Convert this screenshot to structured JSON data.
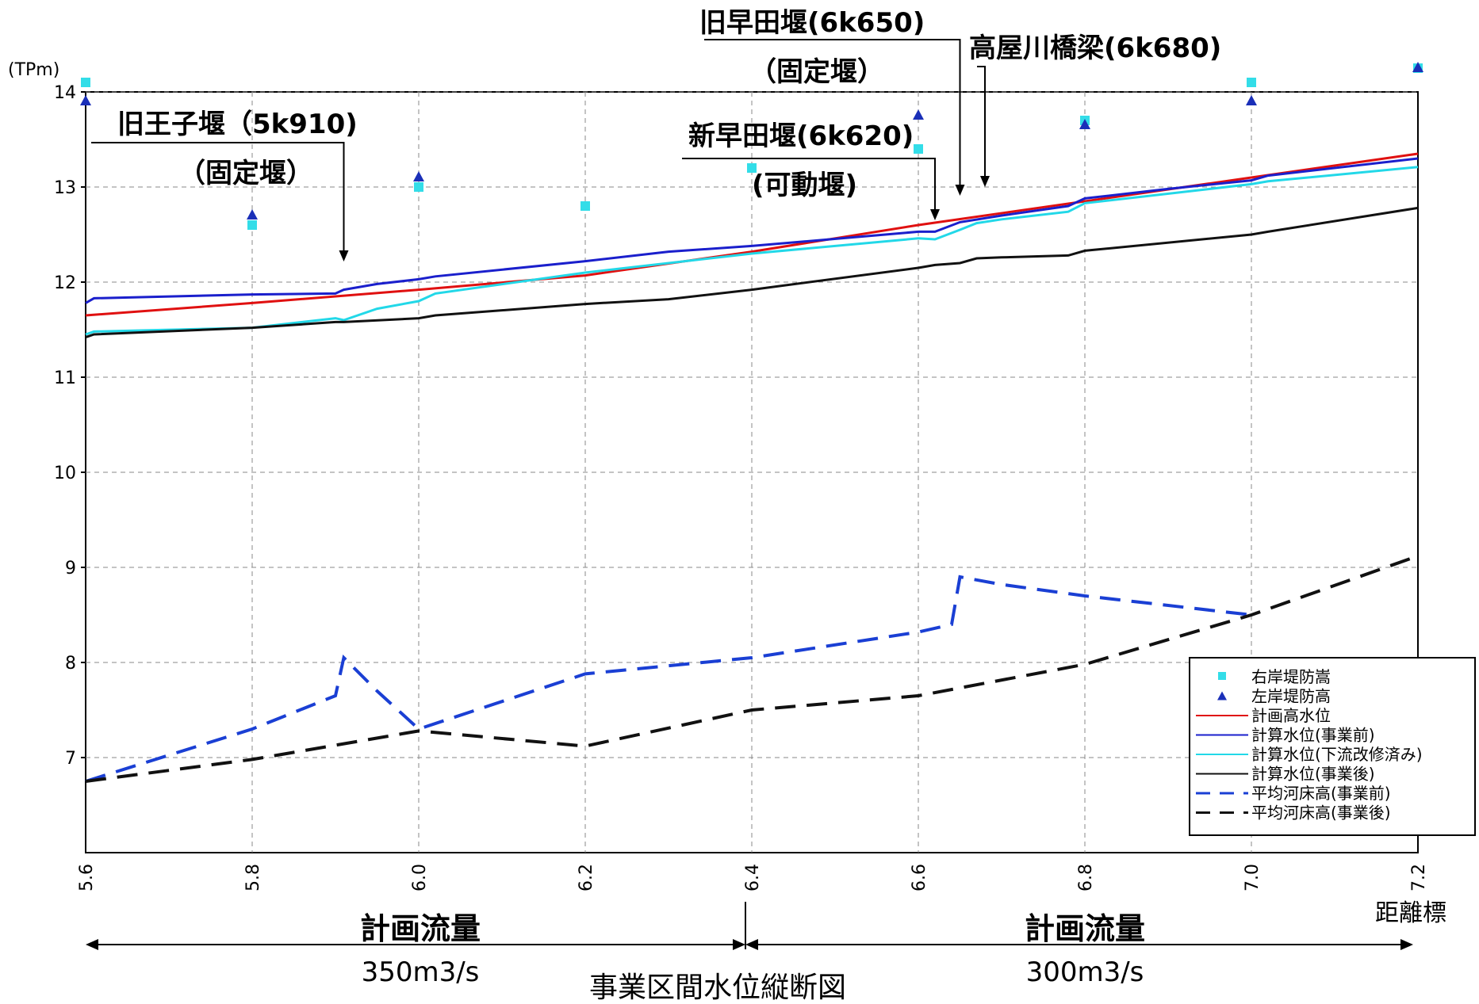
{
  "chart_data": {
    "type": "line",
    "title": "事業区間水位縦断図",
    "ylabel": "(TPm)",
    "xlabel": "距離標",
    "xlim": [
      5.6,
      7.2
    ],
    "ylim": [
      6,
      14
    ],
    "grid": true,
    "legend_position": "bottom-right",
    "x_ticks": [
      5.6,
      5.8,
      6.0,
      6.2,
      6.4,
      6.6,
      6.8,
      7.0,
      7.2
    ],
    "x_tick_labels": [
      "5.6",
      "5.8",
      "6.0",
      "6.2",
      "6.4",
      "6.6",
      "6.8",
      "7.0",
      "7.2"
    ],
    "y_ticks": [
      7,
      8,
      9,
      10,
      11,
      12,
      13,
      14
    ],
    "y_tick_labels": [
      "7",
      "8",
      "9",
      "10",
      "11",
      "12",
      "13",
      "14"
    ],
    "markers": [
      {
        "name": "右岸堤防嵩",
        "shape": "square",
        "color": "#33dde8",
        "points": [
          [
            5.6,
            14.1
          ],
          [
            5.8,
            12.6
          ],
          [
            6.0,
            13.0
          ],
          [
            6.2,
            12.8
          ],
          [
            6.4,
            13.2
          ],
          [
            6.6,
            13.4
          ],
          [
            6.8,
            13.7
          ],
          [
            7.0,
            14.1
          ],
          [
            7.2,
            14.25
          ]
        ]
      },
      {
        "name": "左岸堤防高",
        "shape": "triangle",
        "color": "#1a2fb8",
        "points": [
          [
            5.6,
            13.9
          ],
          [
            5.8,
            12.7
          ],
          [
            6.0,
            13.1
          ],
          [
            6.6,
            13.75
          ],
          [
            6.8,
            13.65
          ],
          [
            7.0,
            13.9
          ],
          [
            7.2,
            14.25
          ]
        ]
      }
    ],
    "series": [
      {
        "name": "計画高水位",
        "color": "#e01010",
        "dash": "solid",
        "x": [
          5.6,
          5.8,
          6.0,
          6.2,
          6.4,
          6.6,
          6.8,
          7.0,
          7.2
        ],
        "y": [
          11.65,
          11.78,
          11.92,
          12.07,
          12.32,
          12.6,
          12.85,
          13.1,
          13.35
        ]
      },
      {
        "name": "計算水位(事業前)",
        "color": "#1a1fcc",
        "dash": "solid",
        "x": [
          5.6,
          5.61,
          5.8,
          5.9,
          5.91,
          5.95,
          6.0,
          6.02,
          6.2,
          6.3,
          6.4,
          6.6,
          6.62,
          6.65,
          6.7,
          6.78,
          6.8,
          6.9,
          7.0,
          7.02,
          7.2
        ],
        "y": [
          11.78,
          11.83,
          11.87,
          11.88,
          11.92,
          11.98,
          12.03,
          12.06,
          12.22,
          12.32,
          12.38,
          12.53,
          12.53,
          12.63,
          12.7,
          12.8,
          12.88,
          12.98,
          13.07,
          13.12,
          13.3
        ]
      },
      {
        "name": "計算水位(下流改修済み)",
        "color": "#22d8e8",
        "dash": "solid",
        "x": [
          5.6,
          5.61,
          5.8,
          5.9,
          5.91,
          5.95,
          6.0,
          6.02,
          6.2,
          6.4,
          6.6,
          6.62,
          6.65,
          6.67,
          6.7,
          6.78,
          6.8,
          7.0,
          7.02,
          7.2
        ],
        "y": [
          11.45,
          11.48,
          11.52,
          11.62,
          11.6,
          11.72,
          11.8,
          11.88,
          12.1,
          12.3,
          12.46,
          12.45,
          12.55,
          12.62,
          12.66,
          12.74,
          12.83,
          13.03,
          13.06,
          13.21
        ]
      },
      {
        "name": "計算水位(事業後)",
        "color": "#111111",
        "dash": "solid",
        "x": [
          5.6,
          5.61,
          5.8,
          5.9,
          5.91,
          6.0,
          6.02,
          6.2,
          6.3,
          6.4,
          6.6,
          6.62,
          6.65,
          6.67,
          6.7,
          6.78,
          6.8,
          7.0,
          7.02,
          7.2
        ],
        "y": [
          11.42,
          11.45,
          11.52,
          11.58,
          11.58,
          11.62,
          11.65,
          11.77,
          11.82,
          11.92,
          12.15,
          12.18,
          12.2,
          12.25,
          12.26,
          12.28,
          12.33,
          12.5,
          12.53,
          12.78
        ]
      },
      {
        "name": "平均河床高(事業前)",
        "color": "#1a3fd4",
        "dash": "dashed",
        "x": [
          5.6,
          5.8,
          5.9,
          5.91,
          5.95,
          6.0,
          6.2,
          6.4,
          6.6,
          6.64,
          6.65,
          6.7,
          6.8,
          7.0
        ],
        "y": [
          6.75,
          7.3,
          7.65,
          8.05,
          7.7,
          7.3,
          7.88,
          8.05,
          8.32,
          8.4,
          8.9,
          8.82,
          8.7,
          8.5
        ]
      },
      {
        "name": "平均河床高(事業後)",
        "color": "#111111",
        "dash": "dashed",
        "x": [
          5.6,
          5.8,
          6.0,
          6.2,
          6.4,
          6.6,
          6.8,
          7.0,
          7.2
        ],
        "y": [
          6.75,
          6.98,
          7.28,
          7.12,
          7.5,
          7.65,
          7.98,
          8.5,
          9.12
        ]
      }
    ],
    "annotations": [
      {
        "id": "ouji",
        "line1": "旧王子堰（5k910)",
        "line2": "（固定堰）",
        "x": 5.91
      },
      {
        "id": "shinwaseda",
        "line1": "新早田堰(6k620)",
        "line2": "(可動堰)",
        "x": 6.62
      },
      {
        "id": "kyuwaseda",
        "line1": "旧早田堰(6k650)",
        "line2": "（固定堰）",
        "x": 6.65
      },
      {
        "id": "takaya",
        "line1": "高屋川橋梁(6k680)",
        "line2": "",
        "x": 6.68
      }
    ],
    "flow_ranges": [
      {
        "label": "計画流量",
        "value": "350m3/s"
      },
      {
        "label": "計画流量",
        "value": "300m3/s"
      }
    ]
  }
}
